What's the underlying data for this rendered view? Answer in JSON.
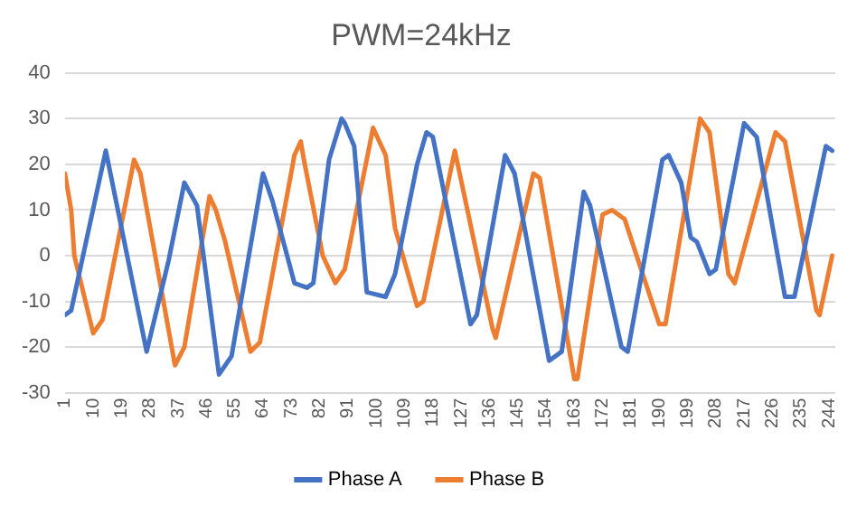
{
  "chart_data": {
    "type": "line",
    "title": "PWM=24kHz",
    "xlim": [
      1,
      246
    ],
    "xticks": [
      1,
      10,
      19,
      28,
      37,
      46,
      55,
      64,
      73,
      82,
      91,
      100,
      109,
      118,
      127,
      136,
      145,
      154,
      163,
      172,
      181,
      190,
      199,
      208,
      217,
      226,
      235,
      244
    ],
    "ylim": [
      -30,
      40
    ],
    "yticks": [
      -30,
      -20,
      -10,
      0,
      10,
      20,
      30,
      40
    ],
    "grid": "y",
    "legend": "bottom",
    "marker": "none",
    "line_style": "solid",
    "series": [
      {
        "name": "Phase A",
        "color": "#4472c4",
        "x": [
          1,
          3,
          14,
          27,
          34,
          39,
          43,
          50,
          54,
          64,
          67,
          74,
          78,
          80,
          85,
          89,
          90,
          93,
          97,
          103,
          106,
          113,
          116,
          118,
          130,
          132,
          141,
          144,
          155,
          159,
          166,
          168,
          178,
          180,
          191,
          193,
          197,
          200,
          202,
          206,
          208,
          217,
          221,
          230,
          233,
          243,
          245
        ],
        "values": [
          -13,
          -12,
          23,
          -21,
          -1,
          16,
          11,
          -26,
          -22,
          18,
          12,
          -6,
          -7,
          -6,
          21,
          30,
          29,
          24,
          -8,
          -9,
          -4,
          20,
          27,
          26,
          -15,
          -13,
          22,
          18,
          -23,
          -21,
          14,
          11,
          -20,
          -21,
          21,
          22,
          16,
          4,
          3,
          -4,
          -3,
          29,
          26,
          -9,
          -9,
          24,
          23
        ]
      },
      {
        "name": "Phase B",
        "color": "#ed7d31",
        "x": [
          1,
          3,
          4,
          10,
          13,
          23,
          25,
          36,
          39,
          47,
          49,
          52,
          60,
          63,
          74,
          76,
          77,
          79,
          83,
          87,
          90,
          99,
          103,
          106,
          113,
          115,
          125,
          137,
          138,
          150,
          152,
          163,
          164,
          172,
          175,
          179,
          190,
          192,
          203,
          206,
          212,
          214,
          227,
          230,
          240,
          241,
          245
        ],
        "values": [
          18,
          10,
          0,
          -17,
          -14,
          21,
          18,
          -24,
          -20,
          13,
          10,
          3,
          -21,
          -19,
          22,
          25,
          21,
          14,
          0,
          -6,
          -3,
          28,
          22,
          6,
          -11,
          -10,
          23,
          -16,
          -18,
          18,
          17,
          -27,
          -27,
          9,
          10,
          8,
          -15,
          -15,
          30,
          27,
          -4,
          -6,
          27,
          25,
          -12,
          -13,
          0
        ]
      }
    ]
  }
}
